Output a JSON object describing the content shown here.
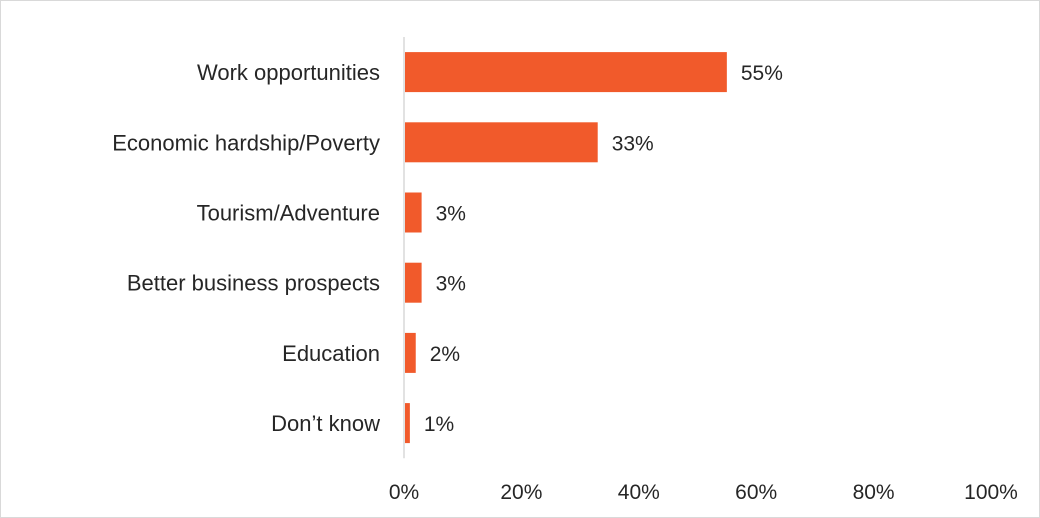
{
  "chart_data": {
    "type": "bar",
    "orientation": "horizontal",
    "title": "",
    "xlabel": "",
    "ylabel": "",
    "categories": [
      "Work opportunities",
      "Economic hardship/Poverty",
      "Tourism/Adventure",
      "Better business prospects",
      "Education",
      "Don’t know"
    ],
    "values": [
      55,
      33,
      3,
      3,
      2,
      1
    ],
    "value_labels": [
      "55%",
      "33%",
      "3%",
      "3%",
      "2%",
      "1%"
    ],
    "xlim": [
      0,
      100
    ],
    "x_ticks": [
      0,
      20,
      40,
      60,
      80,
      100
    ],
    "x_tick_labels": [
      "0%",
      "20%",
      "40%",
      "60%",
      "80%",
      "100%"
    ],
    "grid": false,
    "legend": "none",
    "bar_color": "#f15a2b",
    "axis_color": "#d9d9d9"
  }
}
